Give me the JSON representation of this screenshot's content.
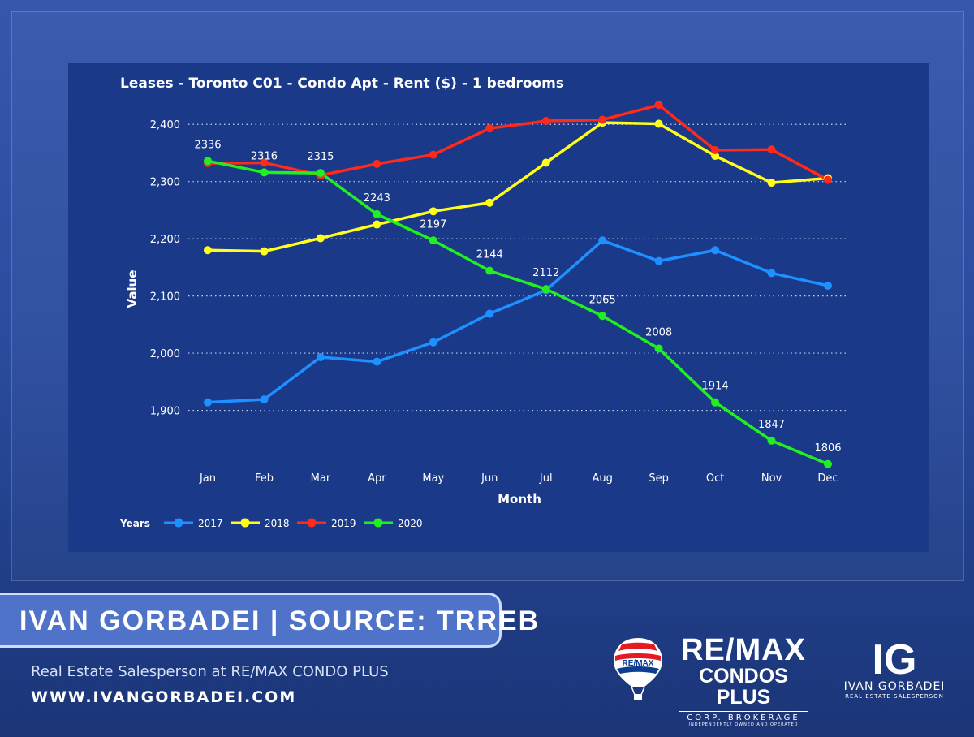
{
  "branding": {
    "banner": "IVAN GORBADEI  |  SOURCE: TRREB",
    "subtitle": "Real Estate Salesperson at RE/MAX CONDO PLUS",
    "website": "WWW.IVANGORBADEI.COM",
    "remax_balloon_text": "RE/MAX",
    "remax_line1": "RE/MAX",
    "remax_line2": "CONDOS PLUS",
    "remax_line3": "CORP. BROKERAGE",
    "remax_line4": "INDEPENDENTLY OWNED AND OPERATED",
    "ig_monogram": "IG",
    "ig_name": "IVAN GORBADEI",
    "ig_role": "REAL ESTATE SALESPERSON"
  },
  "chart_data": {
    "type": "line",
    "title": "Leases - Toronto C01 - Condo Apt - Rent ($) - 1 bedrooms",
    "xlabel": "Month",
    "ylabel": "Value",
    "categories": [
      "Jan",
      "Feb",
      "Mar",
      "Apr",
      "May",
      "Jun",
      "Jul",
      "Aug",
      "Sep",
      "Oct",
      "Nov",
      "Dec"
    ],
    "ylim": [
      1800,
      2450
    ],
    "yticks": [
      1900,
      2000,
      2100,
      2200,
      2300,
      2400
    ],
    "ytick_labels": [
      "1,900",
      "2,000",
      "2,100",
      "2,200",
      "2,300",
      "2,400"
    ],
    "grid": "horizontal dotted",
    "legend": {
      "title": "Years",
      "position": "bottom-left"
    },
    "series": [
      {
        "name": "2017",
        "color": "#1e90ff",
        "values": [
          1914,
          1919,
          1993,
          1985,
          2019,
          2069,
          2110,
          2197,
          2161,
          2180,
          2140,
          2118
        ]
      },
      {
        "name": "2018",
        "color": "#ffff1a",
        "values": [
          2180,
          2178,
          2201,
          2225,
          2248,
          2263,
          2333,
          2403,
          2401,
          2345,
          2298,
          2306
        ]
      },
      {
        "name": "2019",
        "color": "#ff2a1a",
        "values": [
          2332,
          2333,
          2311,
          2331,
          2347,
          2393,
          2406,
          2408,
          2434,
          2355,
          2356,
          2303
        ]
      },
      {
        "name": "2020",
        "color": "#22ee22",
        "values": [
          2336,
          2316,
          2315,
          2243,
          2197,
          2144,
          2112,
          2065,
          2008,
          1914,
          1847,
          1806
        ],
        "data_labels": [
          "2336",
          "2316",
          "2315",
          "2243",
          "2197",
          "2144",
          "2112",
          "2065",
          "2008",
          "1914",
          "1847",
          "1806"
        ]
      }
    ]
  }
}
